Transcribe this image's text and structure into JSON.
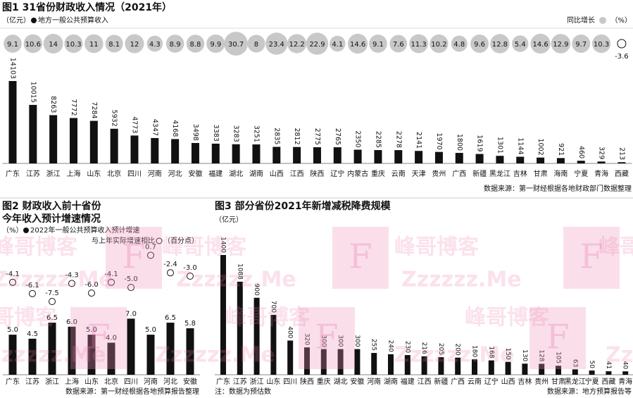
{
  "chart_data": [
    {
      "type": "bar",
      "title": "图1 31省份财政收入情况（2021年）",
      "unit": "（亿元）",
      "unit2": "（%）",
      "source": "数据来源：第一财经根据各地财政部门数据整理",
      "categories": [
        "广东",
        "江苏",
        "浙江",
        "上海",
        "山东",
        "北京",
        "四川",
        "河南",
        "河北",
        "安徽",
        "福建",
        "湖北",
        "湖南",
        "山西",
        "江西",
        "陕西",
        "辽宁",
        "内蒙古",
        "重庆",
        "云南",
        "天津",
        "贵州",
        "广西",
        "新疆",
        "黑龙江",
        "吉林",
        "甘肃",
        "海南",
        "宁夏",
        "青海",
        "西藏"
      ],
      "ylim": [
        0,
        14103
      ],
      "series": [
        {
          "name": "地方一般公共预算收入",
          "color": "#111111",
          "values": [
            14103,
            10015,
            8263,
            7772,
            7284,
            5932,
            4773,
            4347,
            4168,
            3498,
            3383,
            3283,
            3251,
            2835,
            2812,
            2775,
            2765,
            2350,
            2285,
            2278,
            2141,
            1970,
            1800,
            1619,
            1301,
            1144,
            1002,
            921,
            460,
            329,
            213
          ]
        },
        {
          "name": "同比增长",
          "color": "#c8c8c8",
          "axis": "y2",
          "marker": "bubble",
          "values": [
            9.1,
            10.6,
            14,
            10.3,
            11,
            8.1,
            12,
            4.3,
            8.9,
            8.8,
            9.9,
            30.7,
            8,
            23.4,
            12.2,
            22.9,
            4.1,
            14.6,
            9.1,
            7.6,
            11.3,
            10.2,
            4.8,
            9.6,
            12.8,
            5.4,
            14.6,
            12.9,
            9.7,
            10.3,
            -3.6
          ]
        }
      ]
    },
    {
      "type": "bar",
      "title": "图2 财政收入前十省份",
      "subtitle": "今年收入预计增速情况",
      "unit": "（%）",
      "unit2": "（百分点）",
      "source": "数据来源：第一财经根据各地预算报告整理",
      "categories": [
        "广东",
        "江苏",
        "浙江",
        "上海",
        "山东",
        "北京",
        "四川",
        "河南",
        "河北",
        "安徽"
      ],
      "ylim": [
        0,
        8
      ],
      "y2lim": [
        -9,
        2
      ],
      "series": [
        {
          "name": "2022年一般公共预算收入预计增速",
          "color": "#111111",
          "values": [
            5,
            4.5,
            6.5,
            6,
            5,
            4,
            7,
            5,
            6.5,
            5.8
          ],
          "value_labels": [
            "5.0",
            "4.5",
            "6.5",
            "6.0",
            "5.0",
            "4.0",
            "7.0",
            "5.0",
            "6.5",
            "5.8"
          ]
        },
        {
          "name": "与上年实际增速相比",
          "color": "#111111",
          "axis": "y2",
          "marker": "circle",
          "values": [
            -4.1,
            -6.1,
            -7.5,
            -4.3,
            -6,
            -4.1,
            -5,
            0.7,
            -2.4,
            -3
          ],
          "value_labels": [
            "-4.1",
            "-6.1",
            "-7.5",
            "-4.3",
            "-6.0",
            "-4.1",
            "-5.0",
            "0.7",
            "-2.4",
            "-3.0"
          ]
        }
      ]
    },
    {
      "type": "bar",
      "title": "图3 部分省份2021年新增减税降费规模",
      "unit": "（亿元）",
      "note": "注：数据为预估数",
      "source": "数据来源：地方预算报告等",
      "categories": [
        "广东",
        "江苏",
        "浙江",
        "山东",
        "四川",
        "陕西",
        "重庆",
        "湖北",
        "安徽",
        "河南",
        "湖南",
        "福建",
        "江西",
        "新疆",
        "广西",
        "云南",
        "辽宁",
        "山西",
        "吉林",
        "贵州",
        "甘肃",
        "黑龙江",
        "宁夏",
        "西藏",
        "青海"
      ],
      "ylim": [
        0,
        1400
      ],
      "series": [
        {
          "name": "新增减税降费规模",
          "color": "#111111",
          "values": [
            1400,
            1088,
            900,
            700,
            400,
            320,
            300,
            300,
            300,
            255,
            240,
            230,
            216,
            205,
            200,
            180,
            168,
            150,
            130,
            128,
            105,
            63,
            50,
            41,
            40
          ]
        }
      ]
    }
  ],
  "watermark": [
    "峰哥博客",
    "F",
    "Zzzzzz.Me"
  ]
}
